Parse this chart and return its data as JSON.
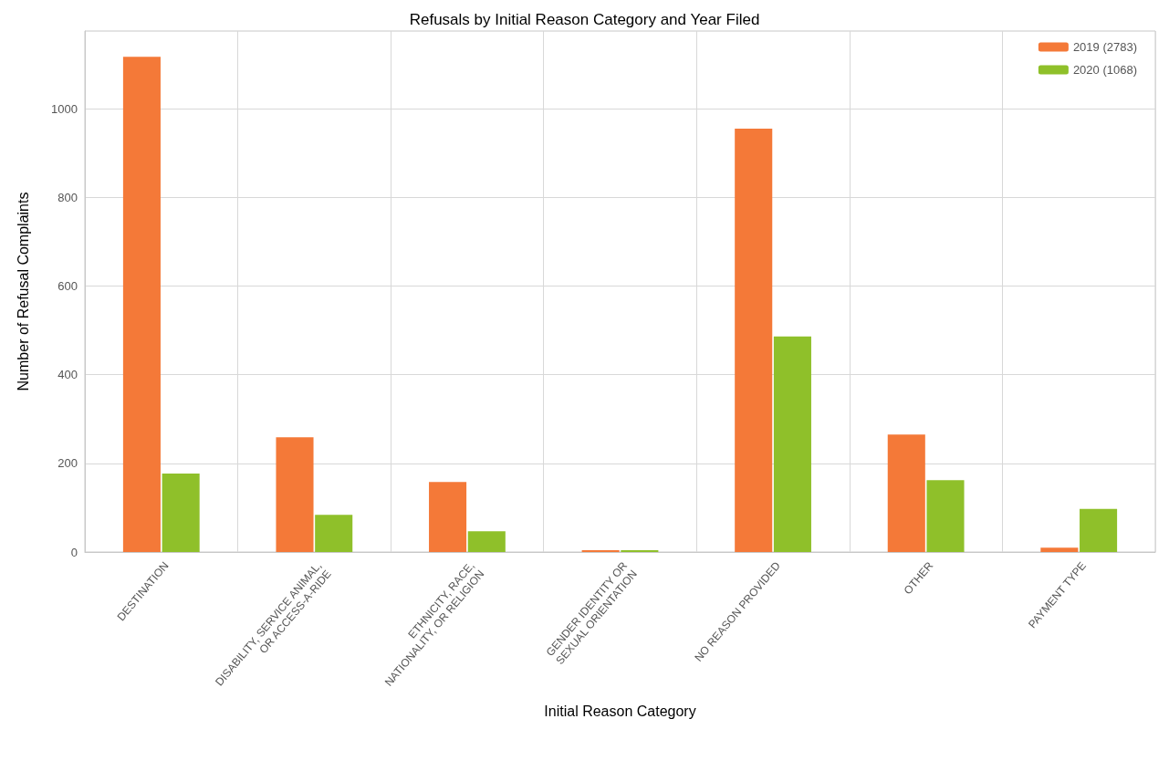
{
  "chart_data": {
    "type": "bar",
    "title": "Refusals by Initial Reason Category and Year Filed",
    "xlabel": "Initial Reason Category",
    "ylabel": "Number of Refusal Complaints",
    "categories": [
      "DESTINATION",
      "DISABILITY, SERVICE ANIMAL,\nOR ACCESS-A-RIDE",
      "ETHNICITY, RACE,\nNATIONALITY, OR RELIGION",
      "GENDER IDENTITY OR\nSEXUAL ORIENTATION",
      "NO REASON PROVIDED",
      "OTHER",
      "PAYMENT TYPE"
    ],
    "series": [
      {
        "name": "2019 (2783)",
        "color": "#f47938",
        "values": [
          1117,
          259,
          158,
          4,
          955,
          265,
          10
        ]
      },
      {
        "name": "2020 (1068)",
        "color": "#8fc02a",
        "values": [
          177,
          84,
          47,
          4,
          486,
          162,
          97
        ]
      }
    ],
    "ylim": [
      0,
      1175
    ],
    "yticks": [
      0,
      200,
      400,
      600,
      800,
      1000
    ],
    "grid": true,
    "legend": "top right"
  }
}
